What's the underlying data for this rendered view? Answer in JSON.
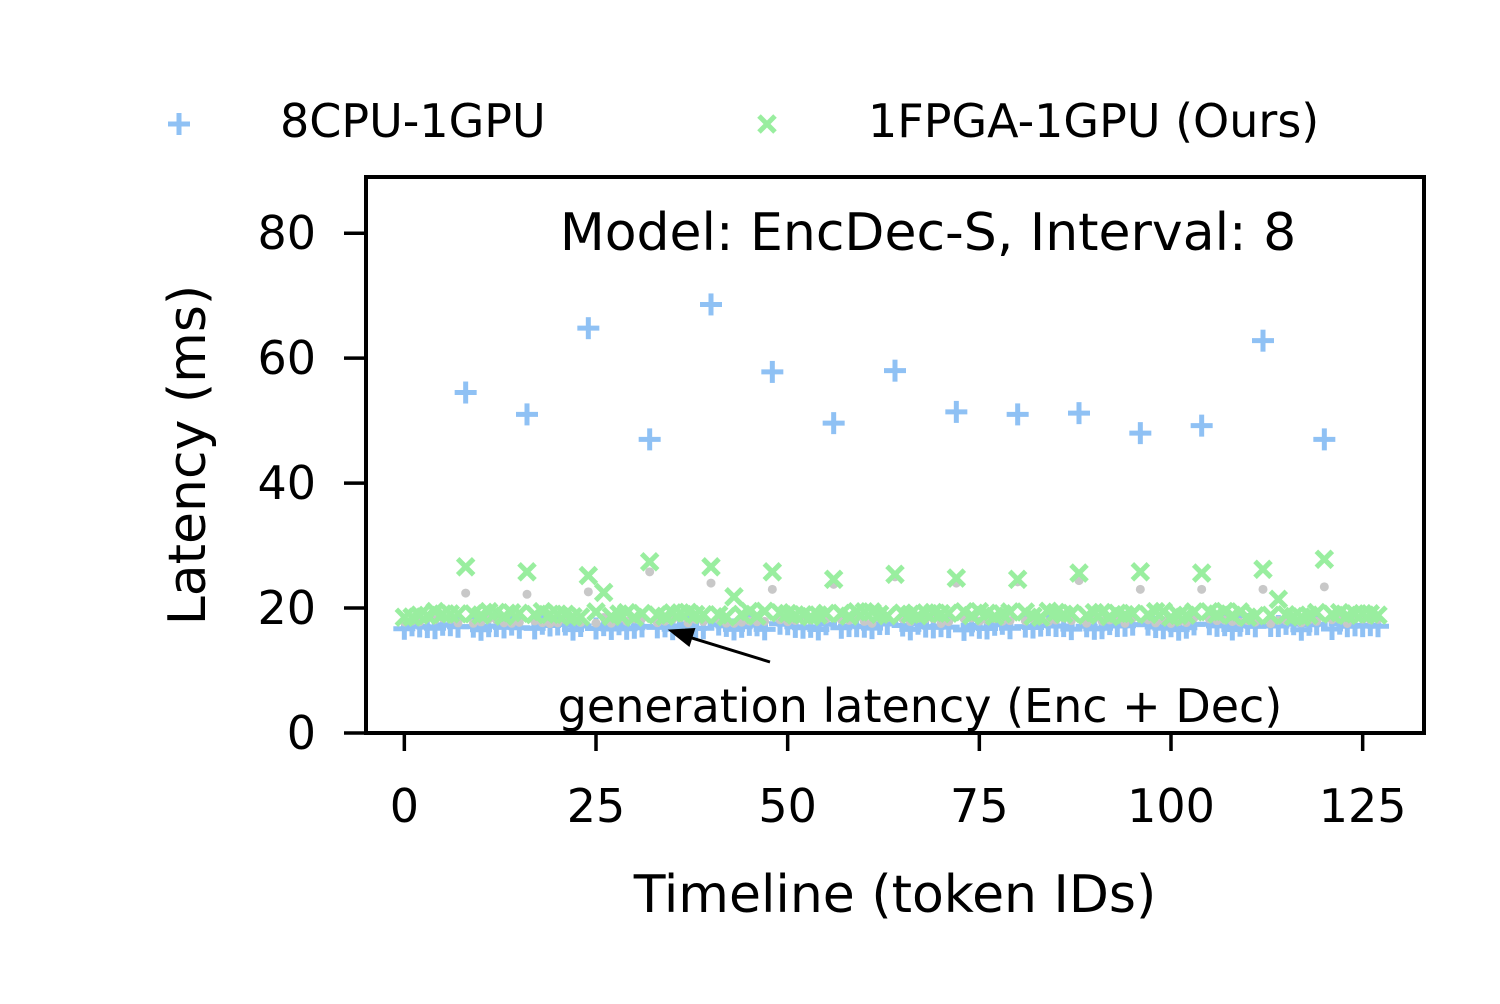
{
  "chart_data": {
    "type": "scatter",
    "title": "",
    "annotation_text": "Model: EncDec-S, Interval: 8",
    "arrow_annotation": {
      "text": "generation latency (Enc + Dec)",
      "points_to": {
        "x": 32,
        "y": 17.5
      }
    },
    "xlabel": "Timeline (token IDs)",
    "ylabel": "Latency (ms)",
    "xlim": [
      -5,
      133
    ],
    "ylim": [
      0,
      89
    ],
    "xticks": [
      0,
      25,
      50,
      75,
      100,
      125
    ],
    "yticks": [
      0,
      20,
      40,
      60,
      80
    ],
    "legend_position": "above-plot",
    "grid": false,
    "series": [
      {
        "name": "8CPU-1GPU",
        "marker": "plus",
        "color": "#8fc1f4",
        "baseline": 17.0,
        "spikes": [
          {
            "x": 8,
            "y": 54.5
          },
          {
            "x": 16,
            "y": 51.0
          },
          {
            "x": 24,
            "y": 64.8
          },
          {
            "x": 32,
            "y": 47.0
          },
          {
            "x": 40,
            "y": 68.6
          },
          {
            "x": 48,
            "y": 57.8
          },
          {
            "x": 56,
            "y": 49.6
          },
          {
            "x": 64,
            "y": 58.0
          },
          {
            "x": 72,
            "y": 51.4
          },
          {
            "x": 80,
            "y": 51.0
          },
          {
            "x": 88,
            "y": 51.2
          },
          {
            "x": 96,
            "y": 48.0
          },
          {
            "x": 104,
            "y": 49.2
          },
          {
            "x": 112,
            "y": 62.8
          },
          {
            "x": 120,
            "y": 47.0
          }
        ]
      },
      {
        "name": "1FPGA-1GPU (Ours)",
        "marker": "x",
        "color": "#99ee9f",
        "baseline": 19.0,
        "spikes": [
          {
            "x": 8,
            "y": 26.6
          },
          {
            "x": 16,
            "y": 25.8
          },
          {
            "x": 24,
            "y": 25.2
          },
          {
            "x": 26,
            "y": 22.5
          },
          {
            "x": 32,
            "y": 27.4
          },
          {
            "x": 40,
            "y": 26.6
          },
          {
            "x": 43,
            "y": 21.8
          },
          {
            "x": 48,
            "y": 25.8
          },
          {
            "x": 56,
            "y": 24.6
          },
          {
            "x": 64,
            "y": 25.4
          },
          {
            "x": 72,
            "y": 24.8
          },
          {
            "x": 80,
            "y": 24.6
          },
          {
            "x": 88,
            "y": 25.6
          },
          {
            "x": 96,
            "y": 25.8
          },
          {
            "x": 104,
            "y": 25.6
          },
          {
            "x": 112,
            "y": 26.2
          },
          {
            "x": 114,
            "y": 21.4
          },
          {
            "x": 120,
            "y": 27.8
          }
        ]
      },
      {
        "name": "",
        "marker": "dot",
        "color": "#c8c8c8",
        "baseline": 18.0,
        "spikes": [
          {
            "x": 8,
            "y": 22.4
          },
          {
            "x": 16,
            "y": 22.2
          },
          {
            "x": 24,
            "y": 22.6
          },
          {
            "x": 32,
            "y": 25.8
          },
          {
            "x": 40,
            "y": 24.0
          },
          {
            "x": 48,
            "y": 23.0
          },
          {
            "x": 56,
            "y": 23.8
          },
          {
            "x": 64,
            "y": 25.0
          },
          {
            "x": 72,
            "y": 24.0
          },
          {
            "x": 80,
            "y": 24.2
          },
          {
            "x": 88,
            "y": 24.4
          },
          {
            "x": 96,
            "y": 23.0
          },
          {
            "x": 104,
            "y": 23.0
          },
          {
            "x": 112,
            "y": 23.0
          },
          {
            "x": 120,
            "y": 23.4
          }
        ]
      }
    ],
    "token_range": [
      0,
      127
    ]
  }
}
